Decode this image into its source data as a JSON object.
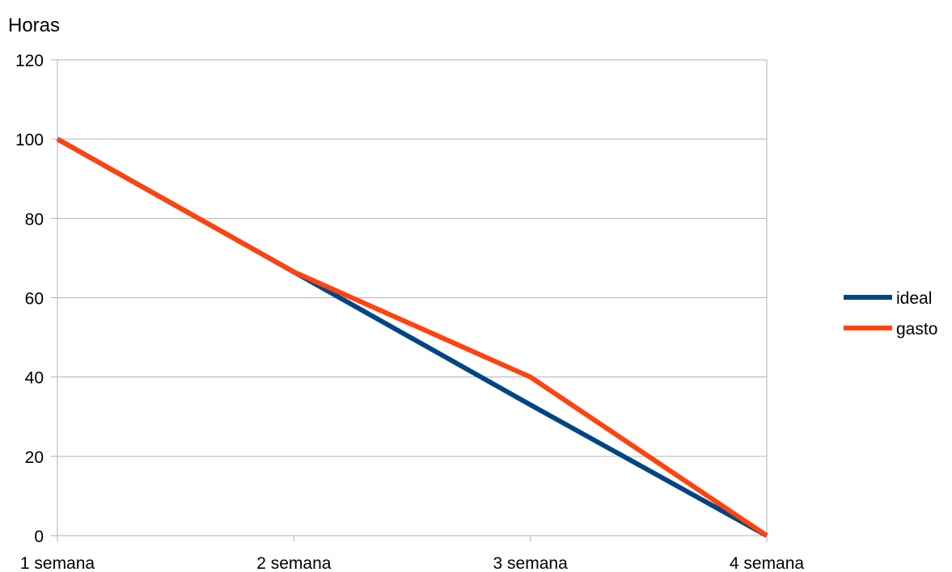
{
  "chart_data": {
    "type": "line",
    "ylabel": "Horas",
    "categories": [
      "1 semana",
      "2 semana",
      "3 semana",
      "4 semana"
    ],
    "ylim": [
      0,
      120
    ],
    "yticks": [
      0,
      20,
      40,
      60,
      80,
      100,
      120
    ],
    "grid": true,
    "legend_position": "right",
    "series": [
      {
        "name": "ideal",
        "color": "#004586",
        "values": [
          100,
          66.5,
          33,
          0
        ]
      },
      {
        "name": "gasto",
        "color": "#ff420e",
        "values": [
          100,
          66.5,
          40,
          0
        ]
      }
    ]
  }
}
